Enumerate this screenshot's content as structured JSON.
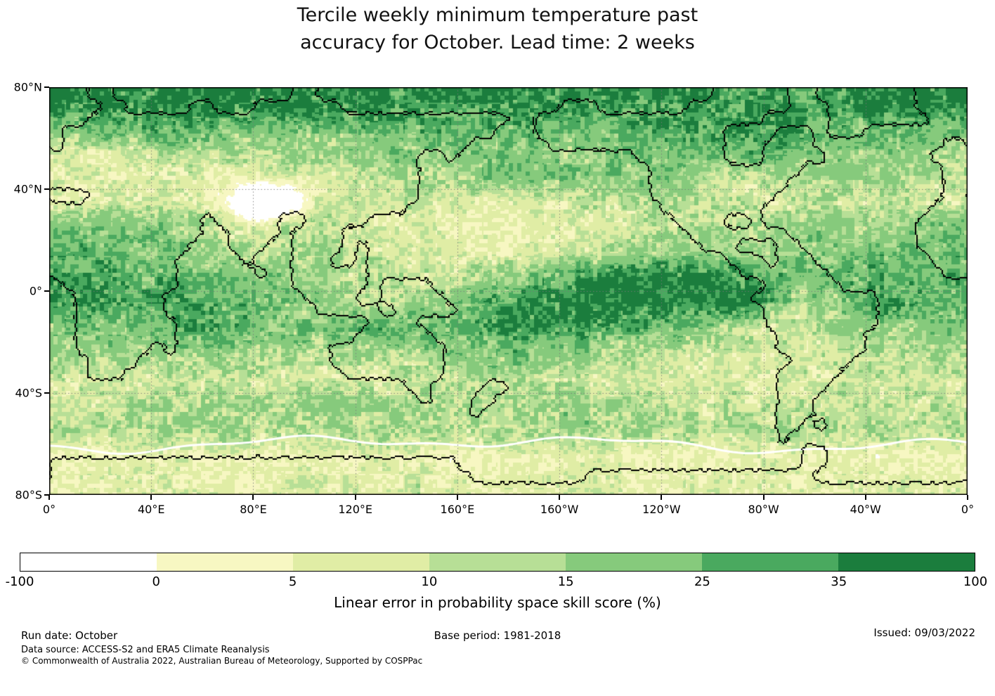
{
  "title": {
    "line1": "Tercile weekly minimum temperature past",
    "line2": "accuracy for October. Lead time: 2 weeks"
  },
  "map": {
    "lat_ticks": [
      "80°N",
      "40°N",
      "0°",
      "40°S",
      "80°S"
    ],
    "lon_ticks": [
      "0°",
      "40°E",
      "80°E",
      "120°E",
      "160°E",
      "160°W",
      "120°W",
      "80°W",
      "40°W",
      "0°"
    ]
  },
  "colorbar": {
    "tick_labels": [
      "-100",
      "0",
      "5",
      "10",
      "15",
      "25",
      "35",
      "100"
    ],
    "colors": [
      "#ffffff",
      "#f7f7c2",
      "#e0eda5",
      "#b7df96",
      "#86ca7c",
      "#4aa95f",
      "#1b7d3d"
    ],
    "label": "Linear error in probability space skill score (%)"
  },
  "footer": {
    "run_date": "Run date: October",
    "base_period": "Base period: 1981-2018",
    "issued": "Issued: 09/03/2022",
    "data_source": "Data source: ACCESS-S2 and ERA5 Climate Reanalysis",
    "copyright": "© Commonwealth of Australia 2022, Australian Bureau of Meteorology, Supported by COSPPac"
  },
  "chart_data": {
    "type": "heatmap",
    "title": "Tercile weekly minimum temperature past accuracy for October. Lead time: 2 weeks",
    "value_label": "Linear error in probability space skill score (%)",
    "levels": [
      -100,
      0,
      5,
      10,
      15,
      25,
      35,
      100
    ],
    "level_colors": [
      "#ffffff",
      "#f7f7c2",
      "#e0eda5",
      "#b7df96",
      "#86ca7c",
      "#4aa95f",
      "#1b7d3d"
    ],
    "lat_range": [
      80,
      -80
    ],
    "lon_range_deg_east": [
      0,
      360
    ],
    "lat_tick_labels": [
      "80°N",
      "40°N",
      "0°",
      "40°S",
      "80°S"
    ],
    "lon_tick_labels": [
      "0°",
      "40°E",
      "80°E",
      "120°E",
      "160°E",
      "160°W",
      "120°W",
      "80°W",
      "40°W",
      "0°"
    ],
    "grid": {
      "description": "Approximate skill score (%) read from the map on 10-degree cells; rows top-to-bottom 80N to 80S, columns left-to-right 0E eastward to 360E",
      "values": [
        [
          38,
          40,
          42,
          40,
          38,
          42,
          44,
          45,
          44,
          42,
          40,
          42,
          44,
          40,
          38,
          36,
          38,
          40,
          38,
          36,
          34,
          33,
          35,
          36,
          34,
          32,
          30,
          33,
          36,
          32,
          30,
          34,
          38,
          40,
          42,
          40
        ],
        [
          26,
          24,
          28,
          30,
          32,
          30,
          26,
          22,
          20,
          22,
          24,
          22,
          24,
          26,
          28,
          30,
          28,
          26,
          27,
          26,
          24,
          22,
          26,
          30,
          32,
          31,
          29,
          33,
          36,
          31,
          26,
          24,
          27,
          30,
          28,
          25
        ],
        [
          10,
          9,
          9,
          11,
          13,
          14,
          13,
          13,
          14,
          15,
          16,
          15,
          17,
          19,
          19,
          21,
          21,
          20,
          20,
          19,
          18,
          20,
          22,
          23,
          21,
          22,
          24,
          25,
          22,
          20,
          18,
          16,
          18,
          20,
          15,
          12
        ],
        [
          8,
          7,
          6,
          7,
          8,
          8,
          7,
          6,
          7,
          8,
          9,
          10,
          12,
          14,
          15,
          16,
          18,
          20,
          21,
          22,
          22,
          20,
          19,
          20,
          18,
          12,
          10,
          10,
          12,
          14,
          15,
          16,
          15,
          14,
          12,
          10
        ],
        [
          9,
          8,
          9,
          8,
          8,
          7,
          6,
          -10,
          -25,
          -10,
          8,
          9,
          10,
          10,
          9,
          8,
          7,
          6,
          6,
          7,
          9,
          11,
          13,
          15,
          15,
          14,
          12,
          10,
          10,
          12,
          13,
          12,
          12,
          12,
          10,
          9
        ],
        [
          20,
          22,
          22,
          20,
          18,
          16,
          12,
          10,
          10,
          12,
          12,
          10,
          8,
          8,
          7,
          6,
          5,
          5,
          5,
          6,
          7,
          8,
          9,
          10,
          12,
          13,
          13,
          14,
          15,
          15,
          16,
          15,
          16,
          18,
          18,
          19
        ],
        [
          25,
          26,
          25,
          24,
          22,
          20,
          16,
          13,
          13,
          14,
          15,
          14,
          12,
          10,
          8,
          7,
          6,
          6,
          6,
          7,
          9,
          11,
          13,
          15,
          18,
          18,
          18,
          18,
          18,
          20,
          20,
          21,
          22,
          22,
          23,
          24
        ],
        [
          30,
          32,
          33,
          30,
          28,
          26,
          25,
          24,
          22,
          18,
          15,
          14,
          12,
          10,
          10,
          12,
          15,
          18,
          22,
          26,
          30,
          34,
          38,
          40,
          42,
          42,
          40,
          35,
          25,
          22,
          25,
          28,
          30,
          30,
          29,
          28
        ],
        [
          30,
          31,
          32,
          30,
          30,
          29,
          28,
          27,
          25,
          20,
          18,
          16,
          15,
          15,
          16,
          18,
          22,
          28,
          34,
          40,
          44,
          46,
          46,
          45,
          44,
          43,
          42,
          40,
          20,
          15,
          18,
          25,
          30,
          32,
          31,
          30
        ],
        [
          20,
          20,
          21,
          22,
          25,
          28,
          28,
          26,
          24,
          22,
          22,
          24,
          26,
          26,
          28,
          28,
          30,
          32,
          33,
          32,
          30,
          28,
          26,
          25,
          22,
          18,
          14,
          10,
          9,
          10,
          12,
          14,
          16,
          18,
          19,
          20
        ],
        [
          14,
          13,
          13,
          14,
          16,
          18,
          18,
          16,
          15,
          14,
          12,
          12,
          12,
          13,
          15,
          18,
          20,
          22,
          22,
          20,
          18,
          16,
          14,
          12,
          10,
          9,
          8,
          8,
          8,
          9,
          10,
          11,
          12,
          13,
          13,
          14
        ],
        [
          9,
          8,
          8,
          9,
          10,
          10,
          10,
          9,
          9,
          10,
          10,
          10,
          9,
          9,
          10,
          12,
          12,
          12,
          11,
          10,
          10,
          9,
          9,
          8,
          8,
          8,
          8,
          8,
          8,
          9,
          9,
          10,
          10,
          10,
          9,
          9
        ],
        [
          10,
          10,
          11,
          12,
          12,
          13,
          14,
          14,
          15,
          15,
          16,
          16,
          15,
          16,
          17,
          16,
          15,
          14,
          14,
          15,
          16,
          15,
          14,
          12,
          11,
          10,
          10,
          10,
          9,
          10,
          11,
          12,
          12,
          11,
          10,
          10
        ],
        [
          12,
          12,
          13,
          14,
          15,
          15,
          14,
          14,
          13,
          13,
          14,
          15,
          16,
          16,
          15,
          14,
          13,
          13,
          14,
          15,
          16,
          16,
          15,
          14,
          13,
          12,
          12,
          13,
          14,
          14,
          13,
          12,
          12,
          13,
          13,
          12
        ],
        [
          5,
          4,
          4,
          5,
          6,
          6,
          5,
          5,
          4,
          4,
          5,
          6,
          6,
          5,
          5,
          4,
          4,
          5,
          5,
          6,
          6,
          5,
          5,
          4,
          4,
          5,
          5,
          6,
          6,
          5,
          4,
          4,
          5,
          5,
          4,
          4
        ],
        [
          6,
          6,
          7,
          8,
          8,
          7,
          6,
          6,
          7,
          8,
          8,
          7,
          7,
          8,
          9,
          8,
          7,
          6,
          6,
          7,
          8,
          8,
          7,
          6,
          6,
          7,
          8,
          8,
          7,
          6,
          6,
          7,
          8,
          8,
          7,
          6
        ]
      ]
    },
    "coastline_land_ranges_5deg": [
      [
        [
          3,
          4
        ],
        [
          19,
          20
        ],
        [
          52,
          57
        ],
        [
          60,
          67
        ]
      ],
      [
        [
          4,
          5
        ],
        [
          11,
          12
        ],
        [
          16,
          22
        ],
        [
          40,
          42
        ],
        [
          50,
          57
        ],
        [
          61,
          67
        ]
      ],
      [
        [
          3,
          35
        ],
        [
          38,
          55
        ],
        [
          61,
          68
        ]
      ],
      [
        [
          1,
          34
        ],
        [
          38,
          52
        ],
        [
          57,
          59
        ],
        [
          61,
          63
        ]
      ],
      [
        [
          1,
          32
        ],
        [
          39,
          52
        ],
        [
          56,
          59
        ],
        [
          70,
          71
        ]
      ],
      [
        [
          0,
          28
        ],
        [
          31,
          31
        ],
        [
          46,
          52
        ],
        [
          56,
          60
        ],
        [
          69,
          71
        ]
      ],
      [
        [
          0,
          28
        ],
        [
          47,
          58
        ],
        [
          70,
          71
        ]
      ],
      [
        [
          0,
          28
        ],
        [
          47,
          57
        ],
        [
          70,
          71
        ]
      ],
      [
        [
          3,
          28
        ],
        [
          47,
          56
        ],
        [
          70,
          71
        ]
      ],
      [
        [
          0,
          27
        ],
        [
          48,
          55
        ],
        [
          69,
          71
        ]
      ],
      [
        [
          0,
          11
        ],
        [
          13,
          17
        ],
        [
          20,
          24
        ],
        [
          49,
          52
        ],
        [
          55,
          55
        ],
        [
          68,
          71
        ]
      ],
      [
        [
          0,
          11
        ],
        [
          14,
          17
        ],
        [
          19,
          22
        ],
        [
          50,
          57
        ],
        [
          68,
          71
        ]
      ],
      [
        [
          0,
          10
        ],
        [
          14,
          16
        ],
        [
          19,
          22
        ],
        [
          24,
          24
        ],
        [
          51,
          53
        ],
        [
          57,
          58
        ],
        [
          68,
          71
        ]
      ],
      [
        [
          0,
          9
        ],
        [
          15,
          15
        ],
        [
          19,
          21
        ],
        [
          24,
          24
        ],
        [
          53,
          55
        ],
        [
          57,
          59
        ],
        [
          69,
          71
        ]
      ],
      [
        [
          0,
          9
        ],
        [
          16,
          16
        ],
        [
          19,
          24
        ],
        [
          54,
          60
        ],
        [
          70,
          71
        ]
      ],
      [
        [
          1,
          9
        ],
        [
          19,
          24
        ],
        [
          26,
          29
        ],
        [
          56,
          61
        ]
      ],
      [
        [
          2,
          8
        ],
        [
          20,
          23
        ],
        [
          26,
          30
        ],
        [
          55,
          64
        ]
      ],
      [
        [
          2,
          8
        ],
        [
          21,
          25
        ],
        [
          27,
          31
        ],
        [
          56,
          64
        ]
      ],
      [
        [
          2,
          9
        ],
        [
          25,
          28
        ],
        [
          56,
          64
        ]
      ],
      [
        [
          2,
          9
        ],
        [
          24,
          29
        ],
        [
          57,
          63
        ]
      ],
      [
        [
          2,
          7
        ],
        [
          9,
          9
        ],
        [
          22,
          30
        ],
        [
          57,
          63
        ]
      ],
      [
        [
          3,
          6
        ],
        [
          22,
          30
        ],
        [
          58,
          62
        ]
      ],
      [
        [
          3,
          5
        ],
        [
          23,
          30
        ],
        [
          57,
          61
        ]
      ],
      [
        [
          28,
          29
        ],
        [
          34,
          35
        ],
        [
          57,
          60
        ]
      ],
      [
        [
          29,
          29
        ],
        [
          33,
          34
        ],
        [
          57,
          59
        ]
      ],
      [
        [
          33,
          33
        ],
        [
          57,
          59
        ]
      ],
      [
        [
          57,
          58
        ],
        [
          60,
          60
        ]
      ],
      [
        [
          57,
          57
        ]
      ],
      [
        [
          59,
          60
        ]
      ],
      [
        [
          0,
          31
        ],
        [
          59,
          60
        ]
      ],
      [
        [
          0,
          32
        ],
        [
          42,
          59
        ]
      ],
      [
        [
          0,
          71
        ]
      ]
    ],
    "annotations": {
      "run_date": "October",
      "base_period": "1981-2018",
      "issued": "09/03/2022",
      "data_source": "ACCESS-S2 and ERA5 Climate Reanalysis"
    }
  }
}
